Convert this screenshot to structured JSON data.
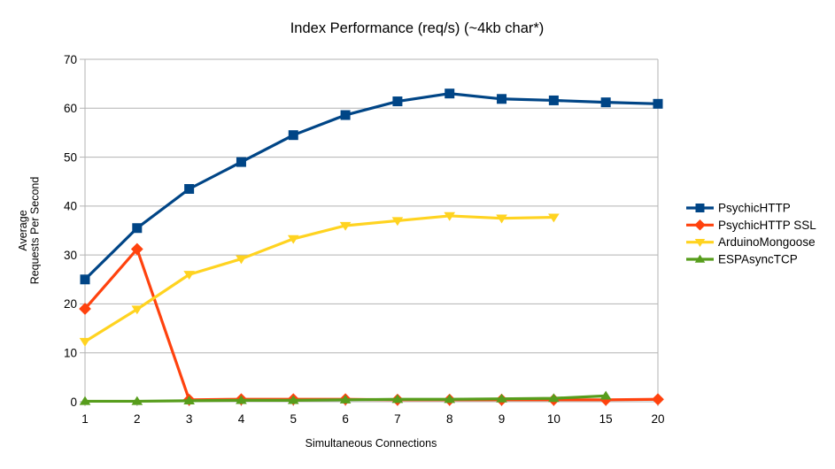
{
  "title": "Index Performance (req/s) (~4kb char*)",
  "y_axis": {
    "title_lines": [
      "Average",
      "Requests Per Second"
    ],
    "ticks": [
      "0",
      "10",
      "20",
      "30",
      "40",
      "50",
      "60",
      "70"
    ]
  },
  "x_axis": {
    "title": "Simultaneous Connections",
    "tick_labels": [
      "1",
      "2",
      "3",
      "4",
      "5",
      "6",
      "7",
      "8",
      "9",
      "10",
      "15",
      "20"
    ]
  },
  "colors": {
    "background": "#ffffff",
    "gridline": "#b3b3b3",
    "axis": "#b3b3b3",
    "text": "#000000"
  },
  "chart_data": {
    "type": "line",
    "title": "Index Performance (req/s) (~4kb char*)",
    "xlabel": "Simultaneous Connections",
    "ylabel": "Average Requests Per Second",
    "categories": [
      "1",
      "2",
      "3",
      "4",
      "5",
      "6",
      "7",
      "8",
      "9",
      "10",
      "15",
      "20"
    ],
    "ylim": [
      0,
      70
    ],
    "y_tick_step": 10,
    "grid": "horizontal",
    "legend_position": "right",
    "series": [
      {
        "name": "PsychicHTTP",
        "color": "#004586",
        "marker": "square",
        "values": [
          25,
          35.5,
          43.5,
          49,
          54.5,
          58.6,
          61.4,
          63,
          61.9,
          61.6,
          61.2,
          60.9
        ]
      },
      {
        "name": "PsychicHTTP SSL",
        "color": "#ff420e",
        "marker": "diamond",
        "values": [
          19,
          31.2,
          0.4,
          0.5,
          0.5,
          0.5,
          0.4,
          0.4,
          0.4,
          0.4,
          0.4,
          0.5
        ]
      },
      {
        "name": "ArduinoMongoose",
        "color": "#ffd320",
        "marker": "triangle-down",
        "values": [
          12.3,
          18.9,
          26,
          29.2,
          33.3,
          36,
          37,
          38,
          37.5,
          37.7,
          null,
          null
        ]
      },
      {
        "name": "ESPAsyncTCP",
        "color": "#579d1c",
        "marker": "triangle-up",
        "values": [
          0.1,
          0.1,
          0.2,
          0.3,
          0.3,
          0.4,
          0.5,
          0.5,
          0.6,
          0.7,
          1.2,
          null
        ]
      }
    ]
  }
}
